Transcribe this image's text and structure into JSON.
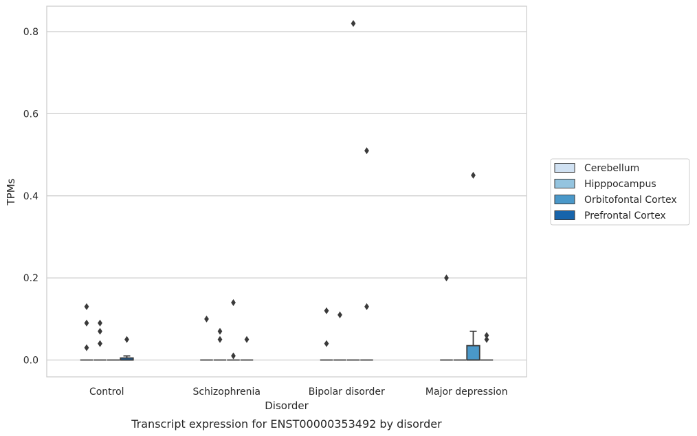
{
  "chart_data": {
    "type": "box",
    "caption": "Transcript expression for ENST00000353492 by disorder",
    "xlabel": "Disorder",
    "ylabel": "TPMs",
    "ylim": [
      -0.04,
      0.86
    ],
    "yticks": [
      0.0,
      0.2,
      0.4,
      0.6,
      0.8
    ],
    "ytick_labels": [
      "0.0",
      "0.2",
      "0.4",
      "0.6",
      "0.8"
    ],
    "grid": "horizontal",
    "legend_position": "right",
    "categories": [
      "Control",
      "Schizophrenia",
      "Bipolar disorder",
      "Major depression"
    ],
    "series": [
      {
        "name": "Cerebellum",
        "color": "#d0e1f2",
        "boxes": [
          {
            "q1": 0,
            "median": 0,
            "q3": 0,
            "whisker_low": 0,
            "whisker_high": 0,
            "outliers": [
              0.03,
              0.09,
              0.13
            ]
          },
          {
            "q1": 0,
            "median": 0,
            "q3": 0,
            "whisker_low": 0,
            "whisker_high": 0,
            "outliers": [
              0.1
            ]
          },
          {
            "q1": 0,
            "median": 0,
            "q3": 0,
            "whisker_low": 0,
            "whisker_high": 0,
            "outliers": [
              0.04,
              0.12
            ]
          },
          {
            "q1": 0,
            "median": 0,
            "q3": 0,
            "whisker_low": 0,
            "whisker_high": 0,
            "outliers": [
              0.2
            ]
          }
        ]
      },
      {
        "name": "Hipppocampus",
        "color": "#94c4df",
        "boxes": [
          {
            "q1": 0,
            "median": 0,
            "q3": 0,
            "whisker_low": 0,
            "whisker_high": 0,
            "outliers": [
              0.04,
              0.07,
              0.09
            ]
          },
          {
            "q1": 0,
            "median": 0,
            "q3": 0,
            "whisker_low": 0,
            "whisker_high": 0,
            "outliers": [
              0.05,
              0.07
            ]
          },
          {
            "q1": 0,
            "median": 0,
            "q3": 0,
            "whisker_low": 0,
            "whisker_high": 0,
            "outliers": [
              0.11
            ]
          },
          {
            "q1": 0,
            "median": 0,
            "q3": 0,
            "whisker_low": 0,
            "whisker_high": 0,
            "outliers": []
          }
        ]
      },
      {
        "name": "Orbitofontal Cortex",
        "color": "#4a98c9",
        "boxes": [
          {
            "q1": 0,
            "median": 0,
            "q3": 0,
            "whisker_low": 0,
            "whisker_high": 0,
            "outliers": []
          },
          {
            "q1": 0,
            "median": 0,
            "q3": 0,
            "whisker_low": 0,
            "whisker_high": 0,
            "outliers": [
              0.01,
              0.14
            ]
          },
          {
            "q1": 0,
            "median": 0,
            "q3": 0,
            "whisker_low": 0,
            "whisker_high": 0,
            "outliers": [
              0.82
            ]
          },
          {
            "q1": 0,
            "median": 0,
            "q3": 0.035,
            "whisker_low": 0,
            "whisker_high": 0.07,
            "outliers": [
              0.45
            ]
          }
        ]
      },
      {
        "name": "Prefrontal Cortex",
        "color": "#1764ab",
        "boxes": [
          {
            "q1": 0,
            "median": 0,
            "q3": 0.005,
            "whisker_low": 0,
            "whisker_high": 0.01,
            "outliers": [
              0.05
            ]
          },
          {
            "q1": 0,
            "median": 0,
            "q3": 0,
            "whisker_low": 0,
            "whisker_high": 0,
            "outliers": [
              0.05
            ]
          },
          {
            "q1": 0,
            "median": 0,
            "q3": 0,
            "whisker_low": 0,
            "whisker_high": 0,
            "outliers": [
              0.13,
              0.51
            ]
          },
          {
            "q1": 0,
            "median": 0,
            "q3": 0,
            "whisker_low": 0,
            "whisker_high": 0,
            "outliers": [
              0.05,
              0.06
            ]
          }
        ]
      }
    ]
  }
}
